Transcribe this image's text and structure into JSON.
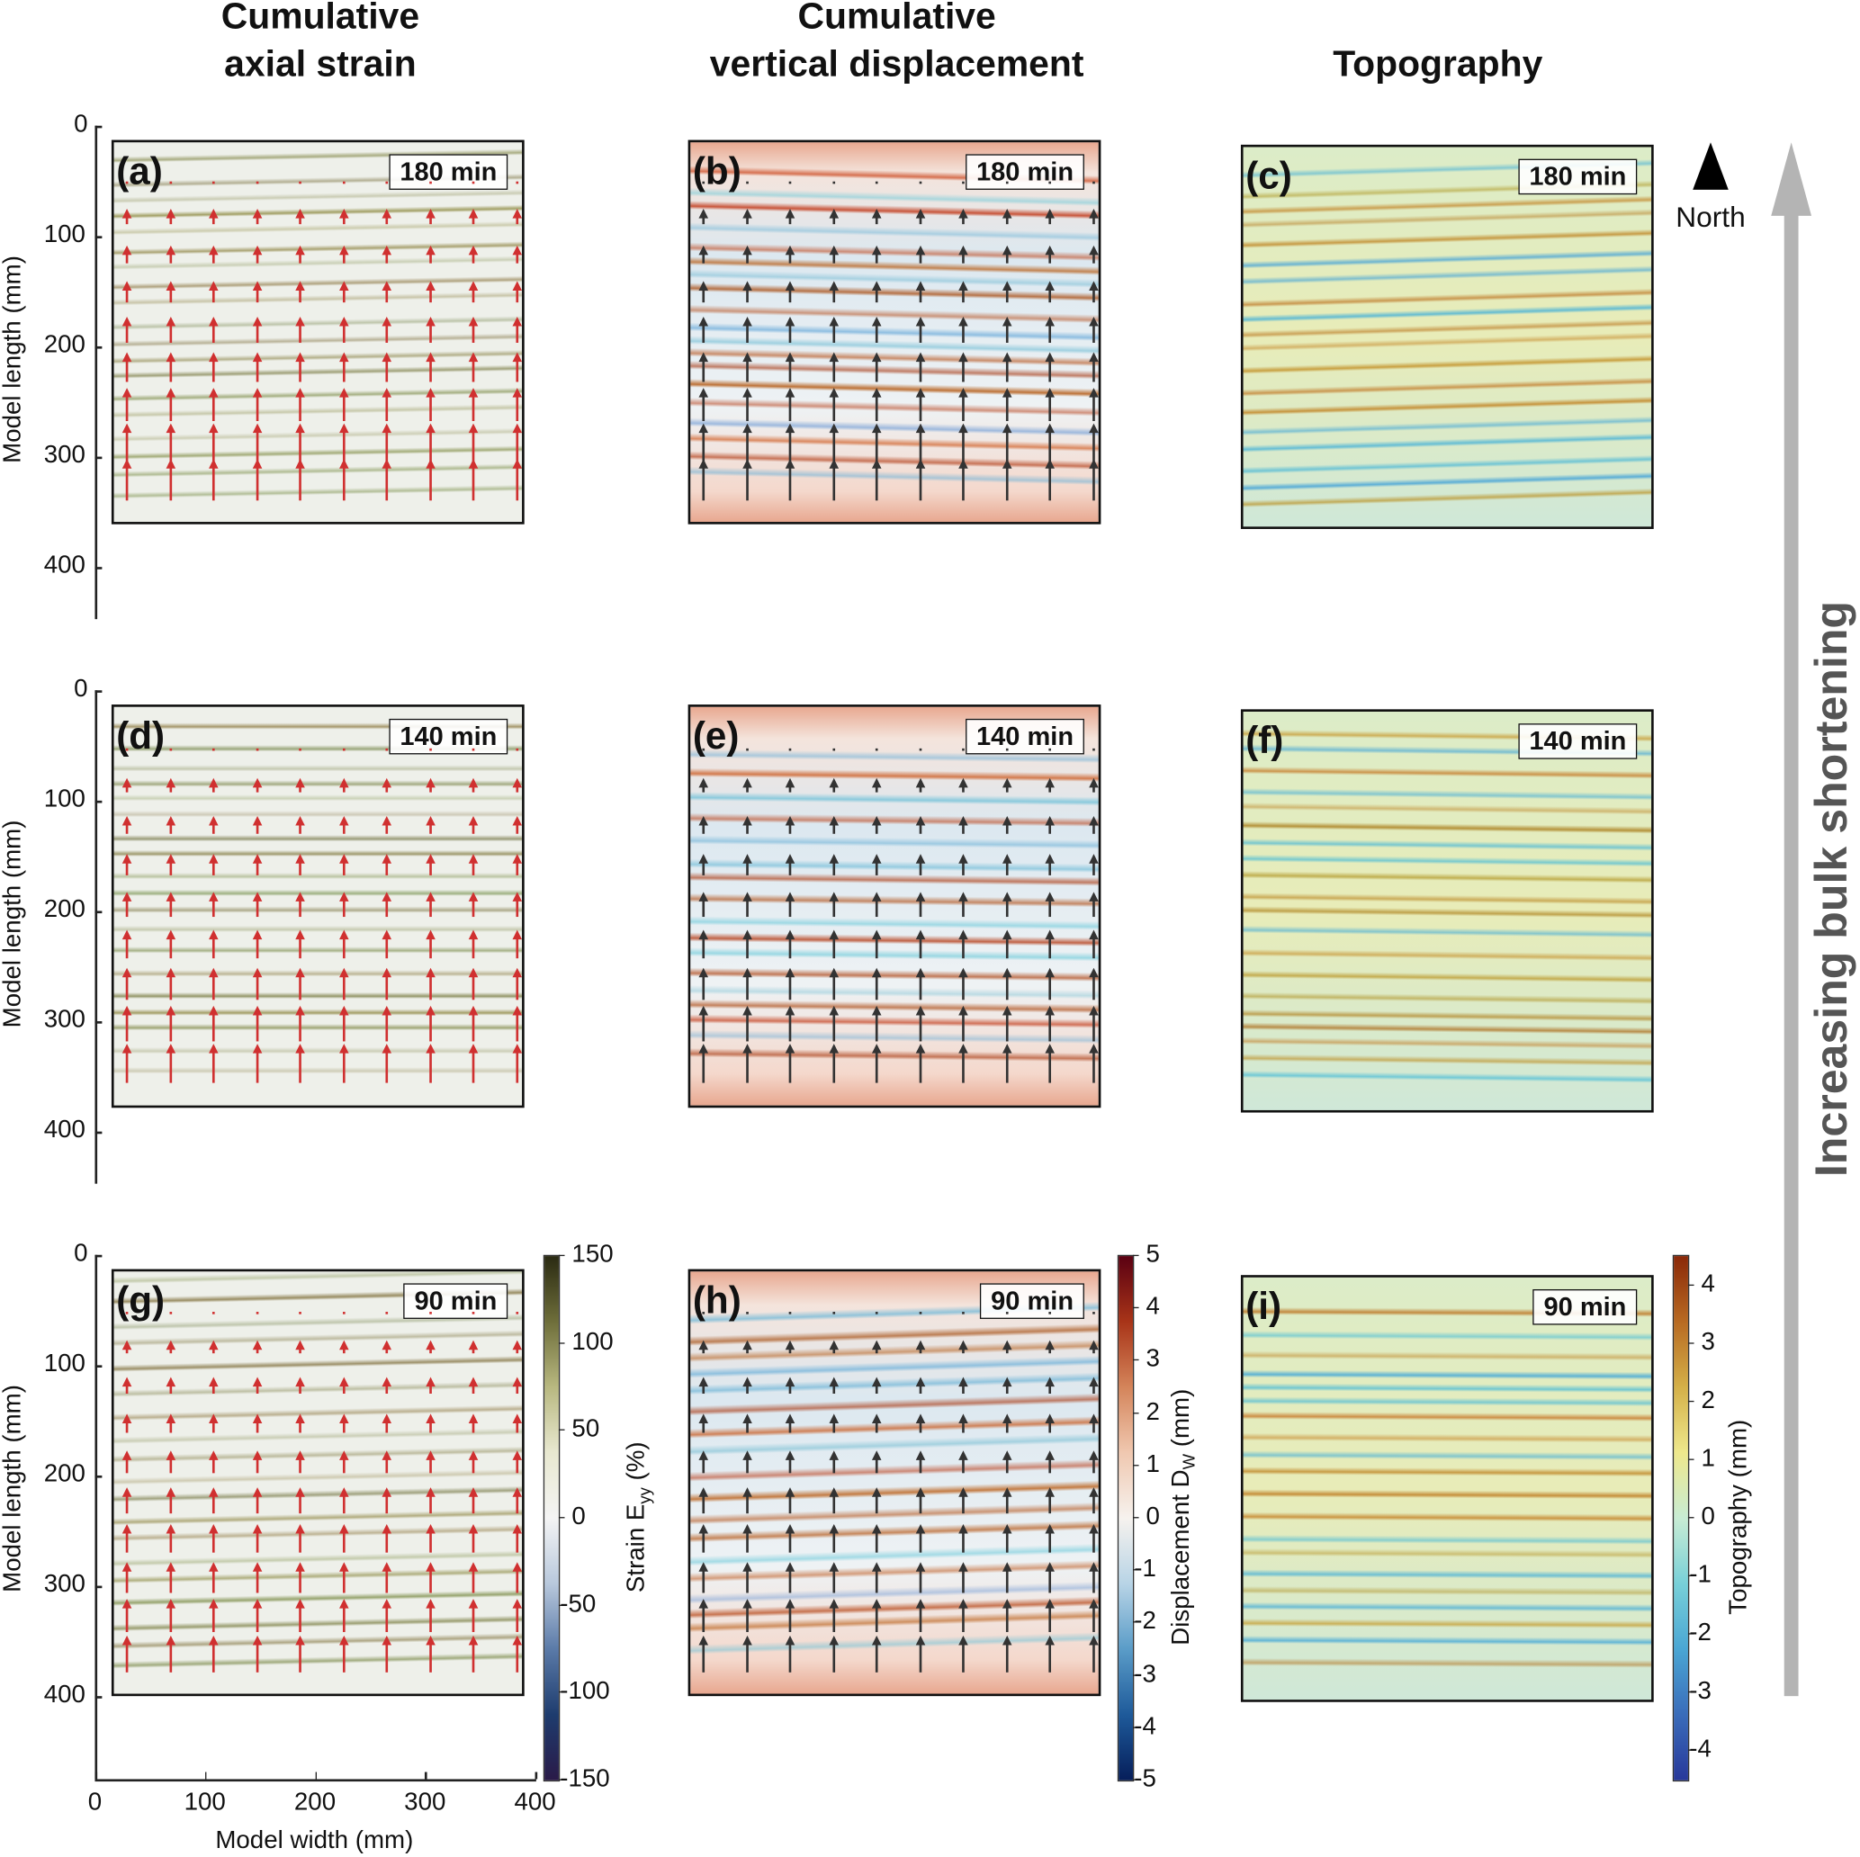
{
  "columns": [
    {
      "title_line1": "Cumulative",
      "title_line2": "axial strain"
    },
    {
      "title_line1": "Cumulative",
      "title_line2": "vertical displacement"
    },
    {
      "title_line1": "",
      "title_line2": "Topography"
    }
  ],
  "panels": [
    {
      "letter": "(a)",
      "time": "180 min",
      "type": "strain"
    },
    {
      "letter": "(b)",
      "time": "180 min",
      "type": "displacement"
    },
    {
      "letter": "(c)",
      "time": "180 min",
      "type": "topography"
    },
    {
      "letter": "(d)",
      "time": "140 min",
      "type": "strain"
    },
    {
      "letter": "(e)",
      "time": "140 min",
      "type": "displacement"
    },
    {
      "letter": "(f)",
      "time": "140 min",
      "type": "topography"
    },
    {
      "letter": "(g)",
      "time": "90 min",
      "type": "strain"
    },
    {
      "letter": "(h)",
      "time": "90 min",
      "type": "displacement"
    },
    {
      "letter": "(i)",
      "time": "90 min",
      "type": "topography"
    }
  ],
  "y_axis": {
    "label": "Model length (mm)",
    "ticks": [
      "0",
      "100",
      "200",
      "300",
      "400"
    ]
  },
  "x_axis": {
    "label": "Model width (mm)",
    "ticks": [
      "0",
      "100",
      "200",
      "300",
      "400"
    ]
  },
  "colorbars": {
    "strain": {
      "label_main": "Strain E",
      "label_sub": "yy",
      "label_unit": " (%)",
      "ticks": [
        "150",
        "100",
        "50",
        "0",
        "-50",
        "-100",
        "-150"
      ],
      "range": [
        -150,
        150
      ],
      "colors": [
        "#2a2a12",
        "#6e6e3a",
        "#b8b880",
        "#e8e8d0",
        "#f4f4f4",
        "#b8c8dc",
        "#5a7aa8",
        "#1e3c6e",
        "#2a1a48"
      ]
    },
    "displacement": {
      "label_main": "Displacement D",
      "label_sub": "W",
      "label_unit": " (mm)",
      "ticks": [
        "5",
        "4",
        "3",
        "2",
        "1",
        "0",
        "-1",
        "-2",
        "-3",
        "-4",
        "-5"
      ],
      "range": [
        -5,
        5
      ],
      "colors": [
        "#5a0012",
        "#a83418",
        "#d4845a",
        "#f0c8b0",
        "#f6f2ee",
        "#b8d4e6",
        "#5a9cc8",
        "#1e5a9a",
        "#061e5a"
      ]
    },
    "topography": {
      "label_main": "Topography (mm)",
      "label_sub": "",
      "label_unit": "",
      "ticks": [
        "4",
        "3",
        "2",
        "1",
        "0",
        "-1",
        "-2",
        "-3",
        "-4"
      ],
      "range": [
        -4.5,
        4.5
      ],
      "colors": [
        "#8a2808",
        "#b86a22",
        "#d4b048",
        "#eee88c",
        "#c8ecd4",
        "#78d0d8",
        "#4aa6d4",
        "#3a6cba",
        "#28389a"
      ]
    }
  },
  "north_label": "North",
  "side_label": "Increasing bulk shortening",
  "colors": {
    "strain_arrow": "#d03030",
    "displacement_arrow": "#333333",
    "progress_arrow": "#b4b4b4"
  }
}
